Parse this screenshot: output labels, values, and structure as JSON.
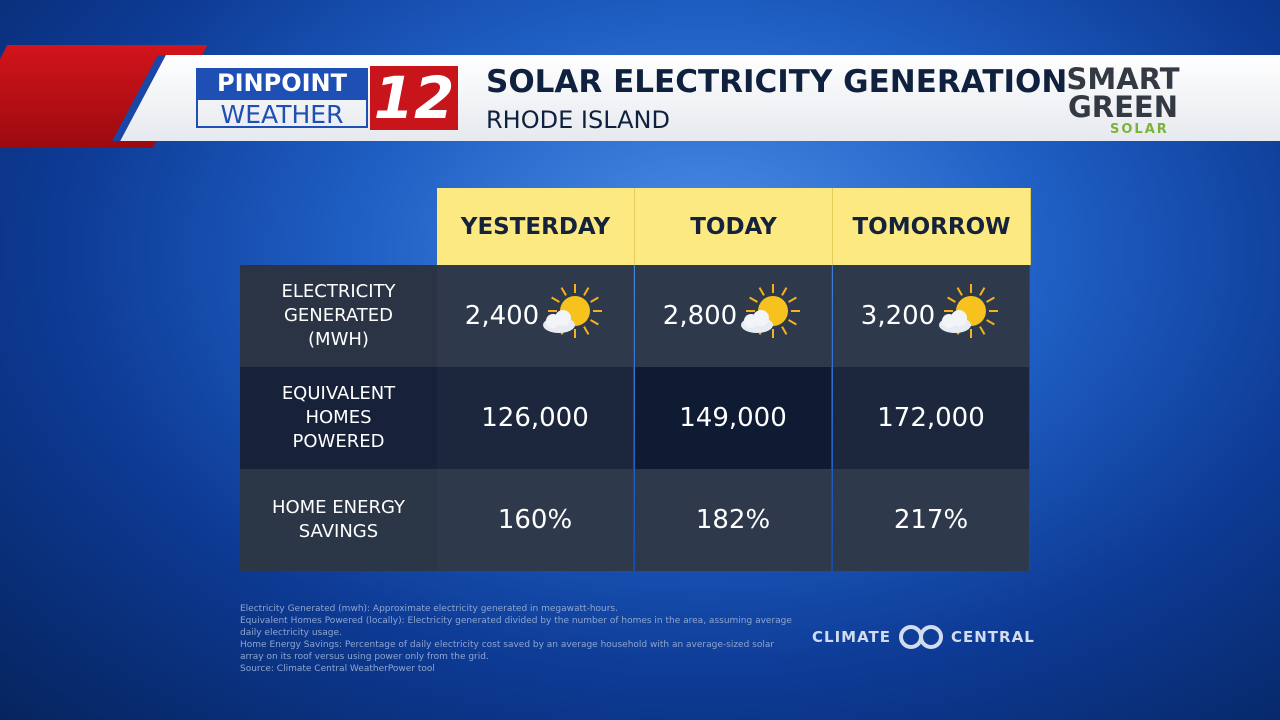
{
  "header": {
    "brand_line1": "PINPOINT",
    "brand_line2": "WEATHER",
    "brand_number": "12",
    "title": "SOLAR ELECTRICITY GENERATION",
    "subtitle": "RHODE ISLAND",
    "sponsor_line1": "SMART",
    "sponsor_line2": "GREEN",
    "sponsor_line3": "SOLAR"
  },
  "table": {
    "columns": [
      "YESTERDAY",
      "TODAY",
      "TOMORROW"
    ],
    "rows": [
      {
        "label": "ELECTRICITY GENERATED (MWH)",
        "cells": [
          "2,400",
          "2,800",
          "3,200"
        ]
      },
      {
        "label": "EQUIVALENT HOMES POWERED",
        "cells": [
          "126,000",
          "149,000",
          "172,000"
        ]
      },
      {
        "label": "HOME ENERGY SAVINGS",
        "cells": [
          "160%",
          "182%",
          "217%"
        ]
      }
    ]
  },
  "footnotes": [
    "Electricity Generated (mwh): Approximate electricity generated in megawatt-hours.",
    "Equivalent Homes Powered (locally): Electricity generated divided by the number of homes in the area, assuming average daily electricity usage.",
    "Home Energy Savings: Percentage of daily electricity cost saved by an average household with an average-sized solar array on its roof versus using power only from the grid.",
    "Source: Climate Central WeatherPower tool"
  ],
  "credit": {
    "left": "CLIMATE",
    "right": "CENTRAL"
  }
}
